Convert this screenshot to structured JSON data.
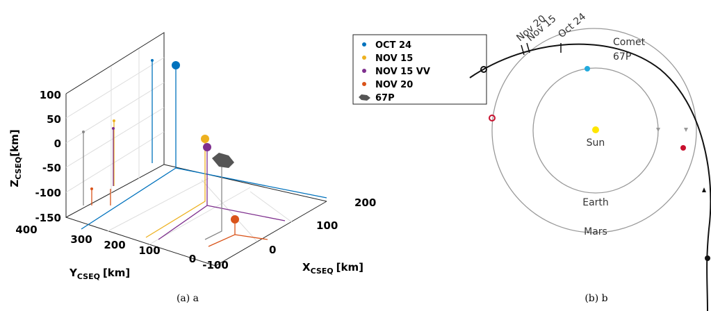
{
  "panel_a": {
    "caption": "(a) a",
    "z_axis": {
      "name": "Z",
      "sub": "CSEQ",
      "unit": "[km]",
      "ticks": [
        "100",
        "50",
        "0",
        "-50",
        "-100",
        "-150"
      ]
    },
    "y_axis": {
      "name": "Y",
      "sub": "CSEQ",
      "unit": "[km]",
      "ticks": [
        "400",
        "300",
        "200",
        "100",
        "0",
        "-100"
      ]
    },
    "x_axis": {
      "name": "X",
      "sub": "CSEQ",
      "unit": "[km]",
      "ticks": [
        "200",
        "100",
        "0"
      ]
    },
    "legend": [
      "OCT 24",
      "NOV 15",
      "NOV 15 VV",
      "NOV 20",
      "67P"
    ]
  },
  "panel_b": {
    "caption": "(b) b",
    "dates": [
      "Nov 20",
      "Nov 15",
      "Oct 24"
    ],
    "comet": [
      "Comet",
      "67P"
    ],
    "bodies": [
      "Sun",
      "Earth",
      "Mars"
    ]
  }
}
